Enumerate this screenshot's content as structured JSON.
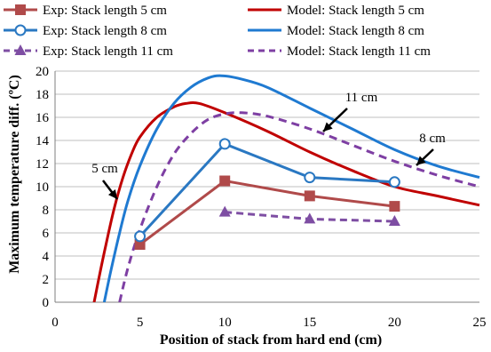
{
  "chart_data": {
    "type": "line",
    "xlabel": "Position of stack from hard end (cm)",
    "ylabel": "Maximum temperature diff. (ºC)",
    "xlim": [
      0,
      25
    ],
    "ylim": [
      0,
      20
    ],
    "x_ticks": [
      0,
      5,
      10,
      15,
      20,
      25
    ],
    "y_ticks": [
      0,
      2,
      4,
      6,
      8,
      10,
      12,
      14,
      16,
      18,
      20
    ],
    "grid": "horizontal",
    "legend_position": "top",
    "series": [
      {
        "name": "Exp: Stack length 5 cm",
        "kind": "exp",
        "marker": "square",
        "style": "solid",
        "color": "#b04a4a",
        "x": [
          5,
          10,
          15,
          20
        ],
        "y": [
          5.0,
          10.5,
          9.2,
          8.3
        ]
      },
      {
        "name": "Exp: Stack length 8 cm",
        "kind": "exp",
        "marker": "circle",
        "style": "solid",
        "color": "#2a78c2",
        "x": [
          5,
          10,
          15,
          20
        ],
        "y": [
          5.7,
          13.7,
          10.8,
          10.4
        ]
      },
      {
        "name": "Exp: Stack length 11 cm",
        "kind": "exp",
        "marker": "triangle",
        "style": "dashed",
        "color": "#7e4ea3",
        "x": [
          10,
          15,
          20
        ],
        "y": [
          7.8,
          7.2,
          7.0
        ]
      },
      {
        "name": "Model: Stack length 5 cm",
        "kind": "model",
        "style": "solid",
        "color": "#c00000",
        "x": [
          2.3,
          2.6,
          3.0,
          3.5,
          4.0,
          4.5,
          5.0,
          6.0,
          7.0,
          7.7,
          8.5,
          10.0,
          12.5,
          15.0,
          17.5,
          20.0,
          22.5,
          25.0
        ],
        "y": [
          0,
          2.2,
          5.0,
          8.2,
          10.8,
          12.8,
          14.3,
          16.0,
          16.9,
          17.2,
          17.2,
          16.4,
          14.8,
          13.0,
          11.4,
          10.0,
          9.2,
          8.4
        ]
      },
      {
        "name": "Model: Stack length 8 cm",
        "kind": "model",
        "style": "solid",
        "color": "#1f7ad1",
        "x": [
          2.9,
          3.3,
          3.8,
          4.3,
          5.0,
          6.0,
          7.0,
          8.0,
          9.0,
          9.8,
          11.0,
          12.5,
          15.0,
          17.5,
          20.0,
          22.5,
          25.0
        ],
        "y": [
          0,
          2.8,
          6.0,
          8.8,
          11.8,
          15.0,
          17.2,
          18.6,
          19.4,
          19.6,
          19.3,
          18.6,
          16.8,
          15.0,
          13.2,
          11.8,
          10.8
        ]
      },
      {
        "name": "Model: Stack length 11 cm",
        "kind": "model",
        "style": "dashed",
        "color": "#7e3fa3",
        "x": [
          3.8,
          4.3,
          5.0,
          6.0,
          7.0,
          8.0,
          9.0,
          10.0,
          11.0,
          12.5,
          15.0,
          17.5,
          20.0,
          22.5,
          25.0
        ],
        "y": [
          0,
          3.0,
          6.3,
          10.0,
          12.8,
          14.6,
          15.8,
          16.3,
          16.4,
          16.1,
          15.0,
          13.6,
          12.2,
          11.0,
          10.0
        ]
      }
    ],
    "annotations": [
      {
        "text": "5 cm",
        "points_to": {
          "x": 3.4,
          "y": 8.5
        }
      },
      {
        "text": "8 cm",
        "points_to": {
          "x": 21.0,
          "y": 12.5
        }
      },
      {
        "text": "11 cm",
        "points_to": {
          "x": 15.0,
          "y": 14.8
        }
      }
    ]
  }
}
